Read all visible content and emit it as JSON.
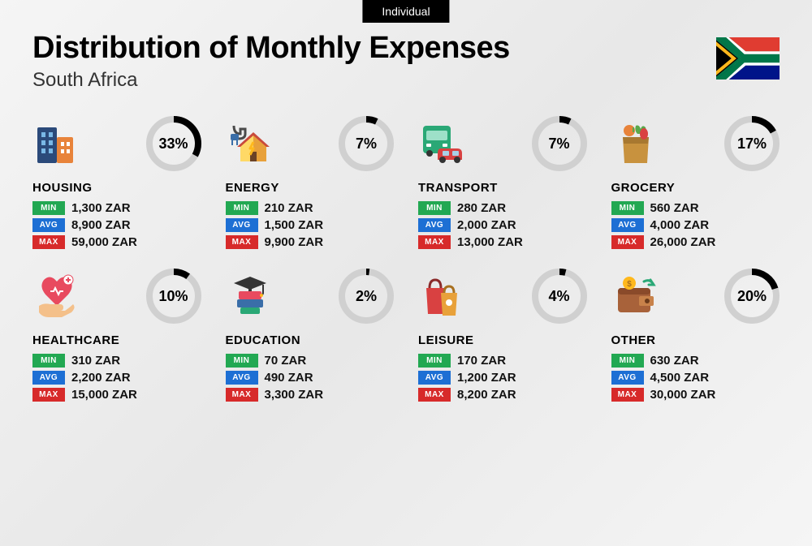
{
  "tab_label": "Individual",
  "title": "Distribution of Monthly Expenses",
  "subtitle": "South Africa",
  "currency": "ZAR",
  "labels": {
    "min": "MIN",
    "avg": "AVG",
    "max": "MAX"
  },
  "colors": {
    "min_badge": "#22a852",
    "avg_badge": "#1d6fd4",
    "max_badge": "#d72a2a",
    "ring_bg": "#d0d0d0",
    "ring_fg": "#000000",
    "background_gradient": [
      "#f5f5f5",
      "#e8e8e8",
      "#f5f5f5"
    ],
    "text": "#000000"
  },
  "ring": {
    "radius": 30,
    "stroke_width": 8,
    "circumference": 188.5
  },
  "categories": [
    {
      "name": "HOUSING",
      "percent": 33,
      "min": "1,300",
      "avg": "8,900",
      "max": "59,000",
      "icon": "buildings"
    },
    {
      "name": "ENERGY",
      "percent": 7,
      "min": "210",
      "avg": "1,500",
      "max": "9,900",
      "icon": "house-plug"
    },
    {
      "name": "TRANSPORT",
      "percent": 7,
      "min": "280",
      "avg": "2,000",
      "max": "13,000",
      "icon": "bus-car"
    },
    {
      "name": "GROCERY",
      "percent": 17,
      "min": "560",
      "avg": "4,000",
      "max": "26,000",
      "icon": "grocery-bag"
    },
    {
      "name": "HEALTHCARE",
      "percent": 10,
      "min": "310",
      "avg": "2,200",
      "max": "15,000",
      "icon": "heart-hand"
    },
    {
      "name": "EDUCATION",
      "percent": 2,
      "min": "70",
      "avg": "490",
      "max": "3,300",
      "icon": "books-cap"
    },
    {
      "name": "LEISURE",
      "percent": 4,
      "min": "170",
      "avg": "1,200",
      "max": "8,200",
      "icon": "shopping-bags"
    },
    {
      "name": "OTHER",
      "percent": 20,
      "min": "630",
      "avg": "4,500",
      "max": "30,000",
      "icon": "wallet"
    }
  ]
}
